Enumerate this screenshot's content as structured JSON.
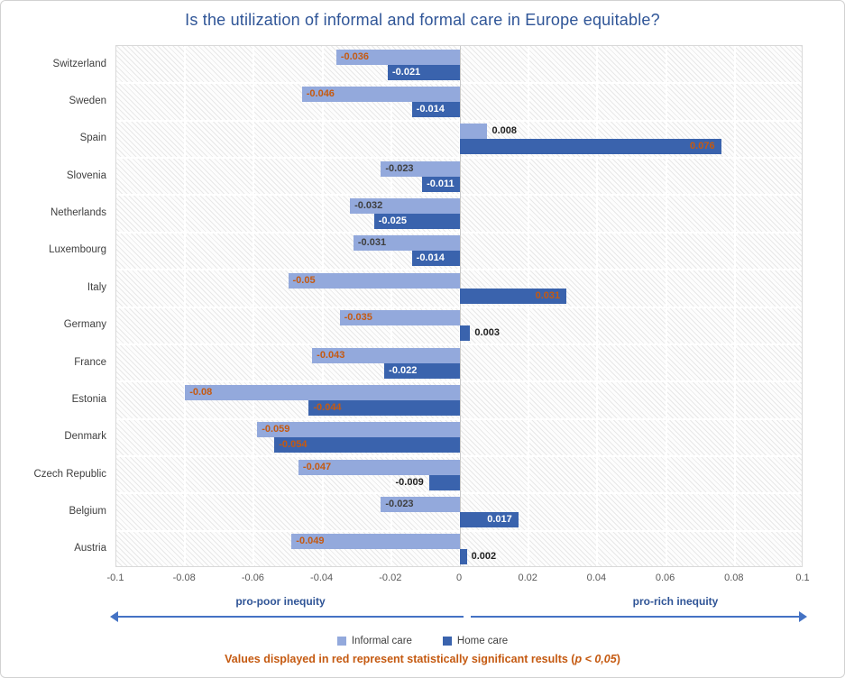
{
  "title": "Is the utilization of informal and formal care in Europe equitable?",
  "chart_data": {
    "type": "bar",
    "orientation": "horizontal",
    "title": "Is the utilization of informal and formal care in Europe equitable?",
    "categories": [
      "Switzerland",
      "Sweden",
      "Spain",
      "Slovenia",
      "Netherlands",
      "Luxembourg",
      "Italy",
      "Germany",
      "France",
      "Estonia",
      "Denmark",
      "Czech Republic",
      "Belgium",
      "Austria"
    ],
    "series": [
      {
        "name": "Informal care",
        "color": "#93a9dc",
        "values": [
          -0.036,
          -0.046,
          0.008,
          -0.023,
          -0.032,
          -0.031,
          -0.05,
          -0.035,
          -0.043,
          -0.08,
          -0.059,
          -0.047,
          -0.023,
          -0.049
        ],
        "significant": [
          true,
          true,
          false,
          false,
          false,
          false,
          true,
          true,
          true,
          true,
          true,
          true,
          false,
          true
        ]
      },
      {
        "name": "Home care",
        "color": "#3a63ad",
        "values": [
          -0.021,
          -0.014,
          0.076,
          -0.011,
          -0.025,
          -0.014,
          0.031,
          0.003,
          -0.022,
          -0.044,
          -0.054,
          -0.009,
          0.017,
          0.002
        ],
        "significant": [
          false,
          false,
          true,
          false,
          false,
          false,
          true,
          false,
          false,
          true,
          true,
          false,
          false,
          false
        ]
      }
    ],
    "xlim": [
      -0.1,
      0.1
    ],
    "xticks": [
      "-0.1",
      "-0.08",
      "-0.06",
      "-0.04",
      "-0.02",
      "0",
      "0.02",
      "0.04",
      "0.06",
      "0.08",
      "0.1"
    ],
    "grid": true,
    "legend_position": "bottom",
    "significance_color": "#C55A11"
  },
  "axis_annotations": {
    "left_label": "pro-poor inequity",
    "right_label": "pro-rich inequity",
    "arrow_color": "#4472C4"
  },
  "legend": {
    "items": [
      {
        "label": "Informal care",
        "color": "#93a9dc"
      },
      {
        "label": "Home care",
        "color": "#3a63ad"
      }
    ]
  },
  "footnote": {
    "prefix": "Values displayed in red represent statistically significant results (",
    "p_italic": "p < 0,05",
    "suffix": ")"
  }
}
